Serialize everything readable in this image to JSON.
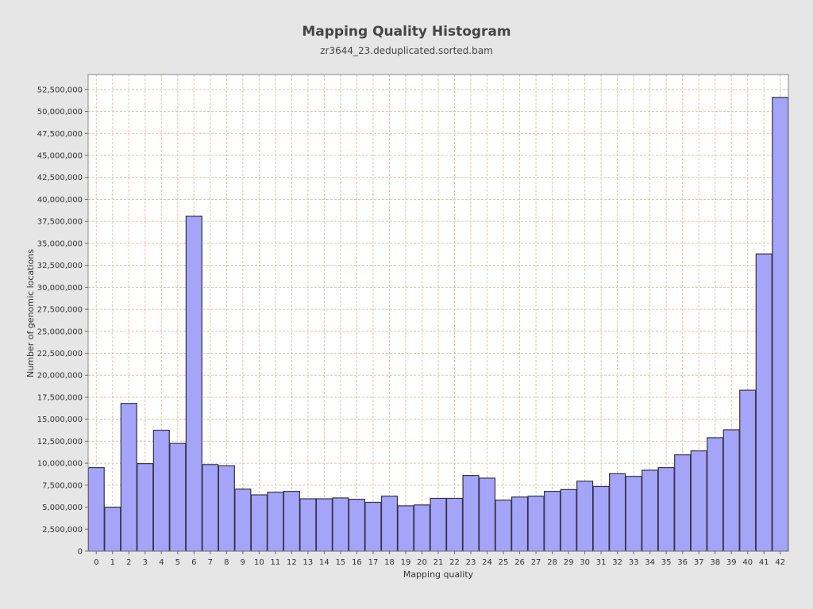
{
  "chart_data": {
    "type": "bar",
    "title": "Mapping Quality Histogram",
    "subtitle": "zr3644_23.deduplicated.sorted.bam",
    "xlabel": "Mapping quality",
    "ylabel": "Number of genomic locations",
    "x_ticks": [
      "0",
      "1",
      "2",
      "3",
      "4",
      "5",
      "6",
      "7",
      "8",
      "9",
      "10",
      "11",
      "12",
      "13",
      "14",
      "15",
      "16",
      "17",
      "18",
      "19",
      "20",
      "21",
      "22",
      "23",
      "24",
      "25",
      "26",
      "27",
      "28",
      "29",
      "30",
      "31",
      "32",
      "33",
      "34",
      "35",
      "36",
      "37",
      "38",
      "39",
      "40",
      "41",
      "42"
    ],
    "y_ticks": [
      "0",
      "2,500,000",
      "5,000,000",
      "7,500,000",
      "10,000,000",
      "12,500,000",
      "15,000,000",
      "17,500,000",
      "20,000,000",
      "22,500,000",
      "25,000,000",
      "27,500,000",
      "30,000,000",
      "32,500,000",
      "35,000,000",
      "37,500,000",
      "40,000,000",
      "42,500,000",
      "45,000,000",
      "47,500,000",
      "50,000,000",
      "52,500,000"
    ],
    "ylim": [
      0,
      54200000
    ],
    "xlim": [
      -0.5,
      42.5
    ],
    "grid": true,
    "bars": [
      {
        "x": 0,
        "value": 9500000
      },
      {
        "x": 1,
        "value": 5000000
      },
      {
        "x": 2,
        "value": 16800000
      },
      {
        "x": 3,
        "value": 9950000
      },
      {
        "x": 4,
        "value": 13750000
      },
      {
        "x": 5,
        "value": 12250000
      },
      {
        "x": 6,
        "value": 38100000
      },
      {
        "x": 7,
        "value": 9850000
      },
      {
        "x": 8,
        "value": 9700000
      },
      {
        "x": 9,
        "value": 7050000
      },
      {
        "x": 10,
        "value": 6400000
      },
      {
        "x": 11,
        "value": 6700000
      },
      {
        "x": 12,
        "value": 6800000
      },
      {
        "x": 13,
        "value": 5950000
      },
      {
        "x": 14,
        "value": 5950000
      },
      {
        "x": 15,
        "value": 6050000
      },
      {
        "x": 16,
        "value": 5900000
      },
      {
        "x": 17,
        "value": 5550000
      },
      {
        "x": 18,
        "value": 6250000
      },
      {
        "x": 19,
        "value": 5150000
      },
      {
        "x": 20,
        "value": 5250000
      },
      {
        "x": 21,
        "value": 6000000
      },
      {
        "x": 22,
        "value": 6000000
      },
      {
        "x": 23,
        "value": 8600000
      },
      {
        "x": 24,
        "value": 8300000
      },
      {
        "x": 25,
        "value": 5800000
      },
      {
        "x": 26,
        "value": 6150000
      },
      {
        "x": 27,
        "value": 6250000
      },
      {
        "x": 28,
        "value": 6800000
      },
      {
        "x": 29,
        "value": 7000000
      },
      {
        "x": 30,
        "value": 7950000
      },
      {
        "x": 31,
        "value": 7350000
      },
      {
        "x": 32,
        "value": 8800000
      },
      {
        "x": 33,
        "value": 8500000
      },
      {
        "x": 34,
        "value": 9200000
      },
      {
        "x": 35,
        "value": 9500000
      },
      {
        "x": 36,
        "value": 10950000
      },
      {
        "x": 37,
        "value": 11400000
      },
      {
        "x": 38,
        "value": 12900000
      },
      {
        "x": 39,
        "value": 13800000
      },
      {
        "x": 40,
        "value": 18300000
      },
      {
        "x": 41,
        "value": 33800000
      },
      {
        "x": 42,
        "value": 51600000
      }
    ],
    "colors": {
      "bar_fill": "#a4a4f9",
      "bar_stroke": "#333344",
      "grid": "#e8c4a8",
      "plot_bg": "#ffffff"
    }
  }
}
